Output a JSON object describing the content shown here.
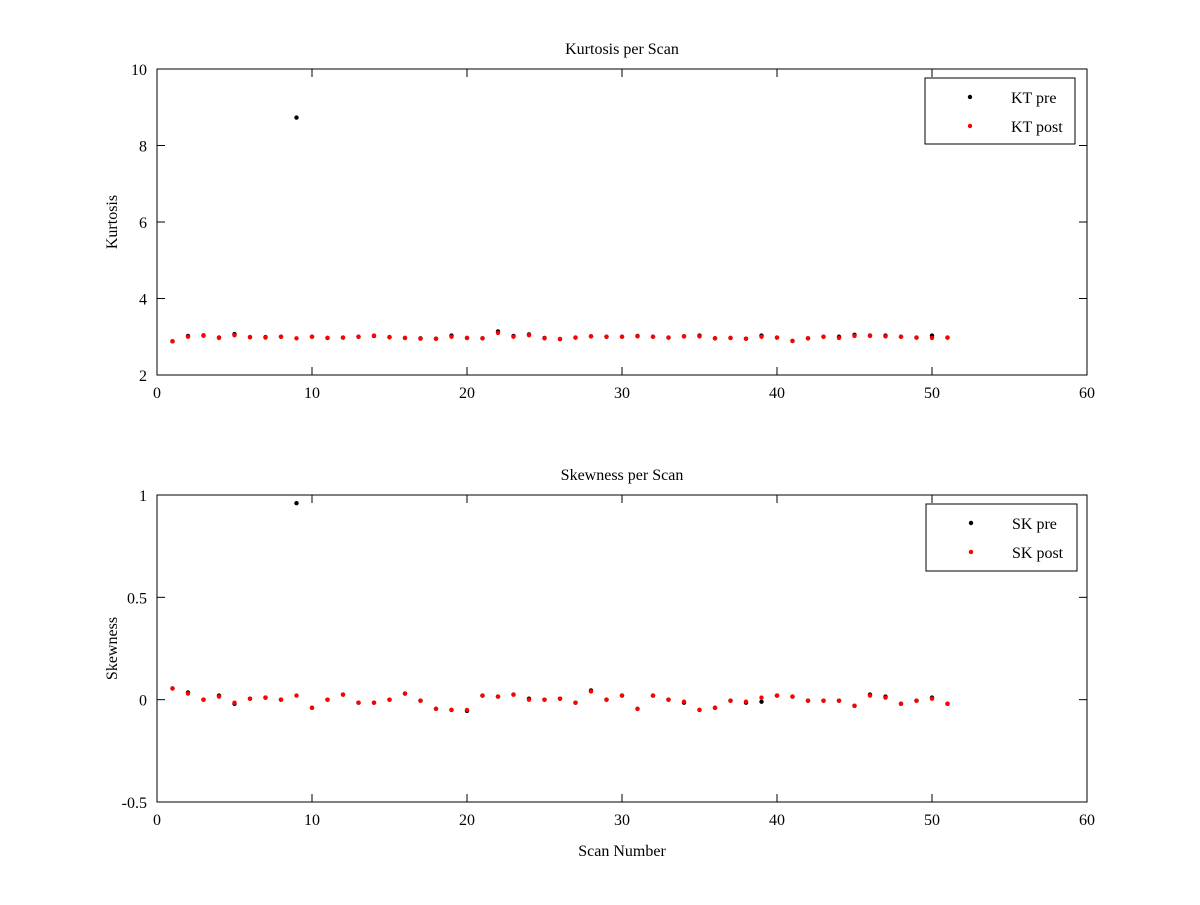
{
  "chart_data": [
    {
      "type": "scatter",
      "title": "Kurtosis per Scan",
      "xlabel": "",
      "ylabel": "Kurtosis",
      "xlim": [
        0,
        60
      ],
      "ylim": [
        2,
        10
      ],
      "xticks": [
        "0",
        "10",
        "20",
        "30",
        "40",
        "50",
        "60"
      ],
      "yticks": [
        "2",
        "4",
        "6",
        "8",
        "10"
      ],
      "legend_placement": "top-right",
      "x": [
        1,
        2,
        3,
        4,
        5,
        6,
        7,
        8,
        9,
        10,
        11,
        12,
        13,
        14,
        15,
        16,
        17,
        18,
        19,
        20,
        21,
        22,
        23,
        24,
        25,
        26,
        27,
        28,
        29,
        30,
        31,
        32,
        33,
        34,
        35,
        36,
        37,
        38,
        39,
        40,
        41,
        42,
        43,
        44,
        45,
        46,
        47,
        48,
        49,
        50,
        51
      ],
      "series": [
        {
          "name": "KT pre",
          "color": "#000000",
          "values": [
            2.88,
            3.02,
            3.03,
            2.98,
            3.07,
            2.99,
            2.99,
            3.0,
            8.73,
            3.0,
            2.97,
            2.98,
            3.0,
            3.02,
            2.99,
            2.97,
            2.96,
            2.95,
            3.03,
            2.97,
            2.96,
            3.14,
            3.02,
            3.06,
            2.97,
            2.94,
            2.98,
            3.01,
            3.0,
            3.0,
            3.02,
            3.0,
            2.98,
            3.01,
            3.03,
            2.96,
            2.97,
            2.95,
            3.03,
            2.98,
            2.89,
            2.96,
            3.0,
            3.0,
            3.05,
            3.03,
            3.03,
            3.0,
            2.98,
            3.03,
            2.98
          ]
        },
        {
          "name": "KT post",
          "color": "#ff0000",
          "values": [
            2.88,
            3.0,
            3.04,
            2.97,
            3.04,
            2.99,
            2.98,
            3.0,
            2.96,
            3.0,
            2.97,
            2.98,
            3.0,
            3.03,
            2.99,
            2.97,
            2.95,
            2.95,
            3.0,
            2.97,
            2.96,
            3.1,
            3.0,
            3.04,
            2.96,
            2.94,
            2.98,
            3.01,
            3.0,
            3.0,
            3.01,
            3.0,
            2.98,
            3.01,
            3.01,
            2.96,
            2.97,
            2.95,
            3.0,
            2.98,
            2.89,
            2.96,
            3.0,
            2.97,
            3.02,
            3.02,
            3.01,
            3.0,
            2.98,
            2.97,
            2.98
          ]
        }
      ]
    },
    {
      "type": "scatter",
      "title": "Skewness per Scan",
      "xlabel": "Scan Number",
      "ylabel": "Skewness",
      "xlim": [
        0,
        60
      ],
      "ylim": [
        -0.5,
        1
      ],
      "xticks": [
        "0",
        "10",
        "20",
        "30",
        "40",
        "50",
        "60"
      ],
      "yticks": [
        "-0.5",
        "0",
        "0.5",
        "1"
      ],
      "legend_placement": "top-right",
      "x": [
        1,
        2,
        3,
        4,
        5,
        6,
        7,
        8,
        9,
        10,
        11,
        12,
        13,
        14,
        15,
        16,
        17,
        18,
        19,
        20,
        21,
        22,
        23,
        24,
        25,
        26,
        27,
        28,
        29,
        30,
        31,
        32,
        33,
        34,
        35,
        36,
        37,
        38,
        39,
        40,
        41,
        42,
        43,
        44,
        45,
        46,
        47,
        48,
        49,
        50,
        51
      ],
      "series": [
        {
          "name": "SK pre",
          "color": "#000000",
          "values": [
            0.055,
            0.035,
            0.0,
            0.02,
            -0.02,
            0.005,
            0.01,
            0.0,
            0.96,
            -0.04,
            0.0,
            0.025,
            -0.015,
            -0.015,
            0.0,
            0.03,
            -0.005,
            -0.045,
            -0.05,
            -0.055,
            0.02,
            0.015,
            0.025,
            0.005,
            0.0,
            0.005,
            -0.015,
            0.045,
            0.0,
            0.02,
            -0.045,
            0.02,
            0.0,
            -0.015,
            -0.05,
            -0.04,
            -0.005,
            -0.015,
            -0.01,
            0.02,
            0.015,
            -0.005,
            -0.005,
            -0.005,
            -0.03,
            0.025,
            0.015,
            -0.02,
            -0.005,
            0.01,
            -0.02
          ]
        },
        {
          "name": "SK post",
          "color": "#ff0000",
          "values": [
            0.055,
            0.03,
            0.0,
            0.015,
            -0.015,
            0.005,
            0.01,
            0.0,
            0.02,
            -0.04,
            0.0,
            0.025,
            -0.015,
            -0.015,
            0.0,
            0.03,
            -0.005,
            -0.045,
            -0.05,
            -0.05,
            0.02,
            0.015,
            0.025,
            0.0,
            0.0,
            0.005,
            -0.015,
            0.04,
            0.0,
            0.02,
            -0.045,
            0.02,
            0.0,
            -0.01,
            -0.05,
            -0.04,
            -0.005,
            -0.01,
            0.01,
            0.02,
            0.015,
            -0.005,
            -0.005,
            -0.005,
            -0.03,
            0.02,
            0.01,
            -0.02,
            -0.005,
            0.005,
            -0.02
          ]
        }
      ]
    }
  ]
}
